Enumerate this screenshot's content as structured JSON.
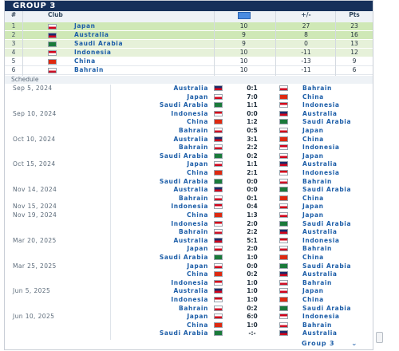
{
  "header": {
    "title": "GROUP 3"
  },
  "standings": {
    "columns": {
      "rank": "#",
      "club": "Club",
      "mp_icon": "matches-played-icon",
      "gd": "+/-",
      "pts": "Pts"
    },
    "rows": [
      {
        "rank": "1",
        "club": "Japan",
        "mp": "10",
        "gd": "27",
        "pts": "23",
        "flag_colors": [
          "#ffffff",
          "#d0021b"
        ]
      },
      {
        "rank": "2",
        "club": "Australia",
        "mp": "9",
        "gd": "8",
        "pts": "16",
        "flag_colors": [
          "#1a2c6b",
          "#d0021b"
        ]
      },
      {
        "rank": "3",
        "club": "Saudi Arabia",
        "mp": "9",
        "gd": "0",
        "pts": "13",
        "flag_colors": [
          "#1a7a3a",
          "#1a7a3a"
        ]
      },
      {
        "rank": "4",
        "club": "Indonesia",
        "mp": "10",
        "gd": "-11",
        "pts": "12",
        "flag_colors": [
          "#d0021b",
          "#ffffff"
        ]
      },
      {
        "rank": "5",
        "club": "China",
        "mp": "10",
        "gd": "-13",
        "pts": "9",
        "flag_colors": [
          "#de2910",
          "#de2910"
        ]
      },
      {
        "rank": "6",
        "club": "Bahrain",
        "mp": "10",
        "gd": "-11",
        "pts": "6",
        "flag_colors": [
          "#ffffff",
          "#ce1126"
        ]
      }
    ],
    "row_colors": {
      "qualified": "#cfe8b6",
      "playoff": "#e6f1d9"
    }
  },
  "schedule": {
    "title": "Schedule",
    "matches": [
      {
        "date": "Sep 5, 2024",
        "home": "Australia",
        "score": "0:1",
        "away": "Bahrain"
      },
      {
        "date": "",
        "home": "Japan",
        "score": "7:0",
        "away": "China"
      },
      {
        "date": "",
        "home": "Saudi Arabia",
        "score": "1:1",
        "away": "Indonesia"
      },
      {
        "date": "Sep 10, 2024",
        "home": "Indonesia",
        "score": "0:0",
        "away": "Australia"
      },
      {
        "date": "",
        "home": "China",
        "score": "1:2",
        "away": "Saudi Arabia"
      },
      {
        "date": "",
        "home": "Bahrain",
        "score": "0:5",
        "away": "Japan"
      },
      {
        "date": "Oct 10, 2024",
        "home": "Australia",
        "score": "3:1",
        "away": "China"
      },
      {
        "date": "",
        "home": "Bahrain",
        "score": "2:2",
        "away": "Indonesia"
      },
      {
        "date": "",
        "home": "Saudi Arabia",
        "score": "0:2",
        "away": "Japan"
      },
      {
        "date": "Oct 15, 2024",
        "home": "Japan",
        "score": "1:1",
        "away": "Australia"
      },
      {
        "date": "",
        "home": "China",
        "score": "2:1",
        "away": "Indonesia"
      },
      {
        "date": "",
        "home": "Saudi Arabia",
        "score": "0:0",
        "away": "Bahrain"
      },
      {
        "date": "Nov 14, 2024",
        "home": "Australia",
        "score": "0:0",
        "away": "Saudi Arabia"
      },
      {
        "date": "",
        "home": "Bahrain",
        "score": "0:1",
        "away": "China"
      },
      {
        "date": "Nov 15, 2024",
        "home": "Indonesia",
        "score": "0:4",
        "away": "Japan"
      },
      {
        "date": "Nov 19, 2024",
        "home": "China",
        "score": "1:3",
        "away": "Japan"
      },
      {
        "date": "",
        "home": "Indonesia",
        "score": "2:0",
        "away": "Saudi Arabia"
      },
      {
        "date": "",
        "home": "Bahrain",
        "score": "2:2",
        "away": "Australia"
      },
      {
        "date": "Mar 20, 2025",
        "home": "Australia",
        "score": "5:1",
        "away": "Indonesia"
      },
      {
        "date": "",
        "home": "Japan",
        "score": "2:0",
        "away": "Bahrain"
      },
      {
        "date": "",
        "home": "Saudi Arabia",
        "score": "1:0",
        "away": "China"
      },
      {
        "date": "Mar 25, 2025",
        "home": "Japan",
        "score": "0:0",
        "away": "Saudi Arabia"
      },
      {
        "date": "",
        "home": "China",
        "score": "0:2",
        "away": "Australia"
      },
      {
        "date": "",
        "home": "Indonesia",
        "score": "1:0",
        "away": "Bahrain"
      },
      {
        "date": "Jun 5, 2025",
        "home": "Australia",
        "score": "1:0",
        "away": "Japan"
      },
      {
        "date": "",
        "home": "Indonesia",
        "score": "1:0",
        "away": "China"
      },
      {
        "date": "",
        "home": "Bahrain",
        "score": "0:2",
        "away": "Saudi Arabia"
      },
      {
        "date": "Jun 10, 2025",
        "home": "Japan",
        "score": "6:0",
        "away": "Indonesia"
      },
      {
        "date": "",
        "home": "China",
        "score": "1:0",
        "away": "Bahrain"
      },
      {
        "date": "",
        "home": "Saudi Arabia",
        "score": "-:-",
        "away": "Australia"
      }
    ]
  },
  "team_flags": {
    "Japan": [
      "#ffffff",
      "#d0021b"
    ],
    "Australia": [
      "#1a2c6b",
      "#d0021b"
    ],
    "Saudi Arabia": [
      "#1a7a3a",
      "#1a7a3a"
    ],
    "Indonesia": [
      "#d0021b",
      "#ffffff"
    ],
    "China": [
      "#de2910",
      "#de2910"
    ],
    "Bahrain": [
      "#ffffff",
      "#ce1126"
    ]
  },
  "footer": {
    "label": "Group 3",
    "chevron_icon": "chevron-down-icon"
  },
  "colors": {
    "title_bg": "#16305a",
    "link": "#1d5ea8",
    "mp_icon": "#4a8be0"
  }
}
